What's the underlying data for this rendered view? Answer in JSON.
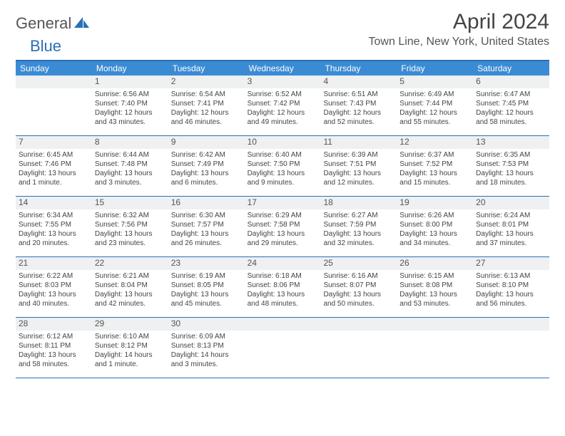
{
  "logo": {
    "text1": "General",
    "text2": "Blue"
  },
  "title": "April 2024",
  "location": "Town Line, New York, United States",
  "colors": {
    "accent": "#3b8bd4",
    "rule": "#2a6fb5",
    "numbar_bg": "#eef0f1",
    "text": "#444444"
  },
  "days_of_week": [
    "Sunday",
    "Monday",
    "Tuesday",
    "Wednesday",
    "Thursday",
    "Friday",
    "Saturday"
  ],
  "weeks": [
    [
      {
        "blank": true
      },
      {
        "n": "1",
        "sunrise": "Sunrise: 6:56 AM",
        "sunset": "Sunset: 7:40 PM",
        "daylight": "Daylight: 12 hours and 43 minutes."
      },
      {
        "n": "2",
        "sunrise": "Sunrise: 6:54 AM",
        "sunset": "Sunset: 7:41 PM",
        "daylight": "Daylight: 12 hours and 46 minutes."
      },
      {
        "n": "3",
        "sunrise": "Sunrise: 6:52 AM",
        "sunset": "Sunset: 7:42 PM",
        "daylight": "Daylight: 12 hours and 49 minutes."
      },
      {
        "n": "4",
        "sunrise": "Sunrise: 6:51 AM",
        "sunset": "Sunset: 7:43 PM",
        "daylight": "Daylight: 12 hours and 52 minutes."
      },
      {
        "n": "5",
        "sunrise": "Sunrise: 6:49 AM",
        "sunset": "Sunset: 7:44 PM",
        "daylight": "Daylight: 12 hours and 55 minutes."
      },
      {
        "n": "6",
        "sunrise": "Sunrise: 6:47 AM",
        "sunset": "Sunset: 7:45 PM",
        "daylight": "Daylight: 12 hours and 58 minutes."
      }
    ],
    [
      {
        "n": "7",
        "sunrise": "Sunrise: 6:45 AM",
        "sunset": "Sunset: 7:46 PM",
        "daylight": "Daylight: 13 hours and 1 minute."
      },
      {
        "n": "8",
        "sunrise": "Sunrise: 6:44 AM",
        "sunset": "Sunset: 7:48 PM",
        "daylight": "Daylight: 13 hours and 3 minutes."
      },
      {
        "n": "9",
        "sunrise": "Sunrise: 6:42 AM",
        "sunset": "Sunset: 7:49 PM",
        "daylight": "Daylight: 13 hours and 6 minutes."
      },
      {
        "n": "10",
        "sunrise": "Sunrise: 6:40 AM",
        "sunset": "Sunset: 7:50 PM",
        "daylight": "Daylight: 13 hours and 9 minutes."
      },
      {
        "n": "11",
        "sunrise": "Sunrise: 6:39 AM",
        "sunset": "Sunset: 7:51 PM",
        "daylight": "Daylight: 13 hours and 12 minutes."
      },
      {
        "n": "12",
        "sunrise": "Sunrise: 6:37 AM",
        "sunset": "Sunset: 7:52 PM",
        "daylight": "Daylight: 13 hours and 15 minutes."
      },
      {
        "n": "13",
        "sunrise": "Sunrise: 6:35 AM",
        "sunset": "Sunset: 7:53 PM",
        "daylight": "Daylight: 13 hours and 18 minutes."
      }
    ],
    [
      {
        "n": "14",
        "sunrise": "Sunrise: 6:34 AM",
        "sunset": "Sunset: 7:55 PM",
        "daylight": "Daylight: 13 hours and 20 minutes."
      },
      {
        "n": "15",
        "sunrise": "Sunrise: 6:32 AM",
        "sunset": "Sunset: 7:56 PM",
        "daylight": "Daylight: 13 hours and 23 minutes."
      },
      {
        "n": "16",
        "sunrise": "Sunrise: 6:30 AM",
        "sunset": "Sunset: 7:57 PM",
        "daylight": "Daylight: 13 hours and 26 minutes."
      },
      {
        "n": "17",
        "sunrise": "Sunrise: 6:29 AM",
        "sunset": "Sunset: 7:58 PM",
        "daylight": "Daylight: 13 hours and 29 minutes."
      },
      {
        "n": "18",
        "sunrise": "Sunrise: 6:27 AM",
        "sunset": "Sunset: 7:59 PM",
        "daylight": "Daylight: 13 hours and 32 minutes."
      },
      {
        "n": "19",
        "sunrise": "Sunrise: 6:26 AM",
        "sunset": "Sunset: 8:00 PM",
        "daylight": "Daylight: 13 hours and 34 minutes."
      },
      {
        "n": "20",
        "sunrise": "Sunrise: 6:24 AM",
        "sunset": "Sunset: 8:01 PM",
        "daylight": "Daylight: 13 hours and 37 minutes."
      }
    ],
    [
      {
        "n": "21",
        "sunrise": "Sunrise: 6:22 AM",
        "sunset": "Sunset: 8:03 PM",
        "daylight": "Daylight: 13 hours and 40 minutes."
      },
      {
        "n": "22",
        "sunrise": "Sunrise: 6:21 AM",
        "sunset": "Sunset: 8:04 PM",
        "daylight": "Daylight: 13 hours and 42 minutes."
      },
      {
        "n": "23",
        "sunrise": "Sunrise: 6:19 AM",
        "sunset": "Sunset: 8:05 PM",
        "daylight": "Daylight: 13 hours and 45 minutes."
      },
      {
        "n": "24",
        "sunrise": "Sunrise: 6:18 AM",
        "sunset": "Sunset: 8:06 PM",
        "daylight": "Daylight: 13 hours and 48 minutes."
      },
      {
        "n": "25",
        "sunrise": "Sunrise: 6:16 AM",
        "sunset": "Sunset: 8:07 PM",
        "daylight": "Daylight: 13 hours and 50 minutes."
      },
      {
        "n": "26",
        "sunrise": "Sunrise: 6:15 AM",
        "sunset": "Sunset: 8:08 PM",
        "daylight": "Daylight: 13 hours and 53 minutes."
      },
      {
        "n": "27",
        "sunrise": "Sunrise: 6:13 AM",
        "sunset": "Sunset: 8:10 PM",
        "daylight": "Daylight: 13 hours and 56 minutes."
      }
    ],
    [
      {
        "n": "28",
        "sunrise": "Sunrise: 6:12 AM",
        "sunset": "Sunset: 8:11 PM",
        "daylight": "Daylight: 13 hours and 58 minutes."
      },
      {
        "n": "29",
        "sunrise": "Sunrise: 6:10 AM",
        "sunset": "Sunset: 8:12 PM",
        "daylight": "Daylight: 14 hours and 1 minute."
      },
      {
        "n": "30",
        "sunrise": "Sunrise: 6:09 AM",
        "sunset": "Sunset: 8:13 PM",
        "daylight": "Daylight: 14 hours and 3 minutes."
      },
      {
        "blank": true
      },
      {
        "blank": true
      },
      {
        "blank": true
      },
      {
        "blank": true
      }
    ]
  ]
}
